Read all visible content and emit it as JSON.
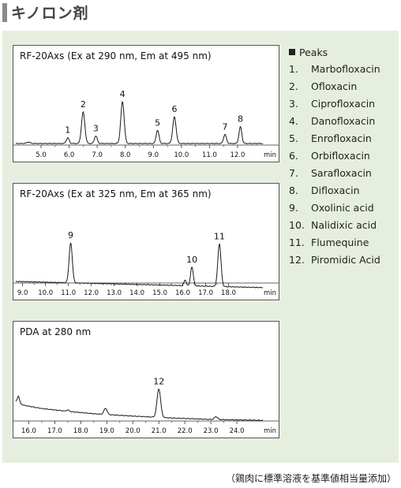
{
  "page": {
    "title": "キノロン剤",
    "footnote": "（鶏肉に標準溶液を基準値相当量添加）"
  },
  "legend": {
    "header": "Peaks",
    "items": [
      {
        "number": "1.",
        "name": "Marbofloxacin"
      },
      {
        "number": "2.",
        "name": "Ofloxacin"
      },
      {
        "number": "3.",
        "name": "Ciprofloxacin"
      },
      {
        "number": "4.",
        "name": "Danofloxacin"
      },
      {
        "number": "5.",
        "name": "Enrofloxacin"
      },
      {
        "number": "6.",
        "name": "Orbifloxacin"
      },
      {
        "number": "7.",
        "name": "Sarafloxacin"
      },
      {
        "number": "8.",
        "name": "Difloxacin"
      },
      {
        "number": "9.",
        "name": "Oxolinic acid"
      },
      {
        "number": "10.",
        "name": "Nalidixic acid"
      },
      {
        "number": "11.",
        "name": "Flumequine"
      },
      {
        "number": "12.",
        "name": "Piromidic Acid"
      }
    ]
  },
  "chart_data": [
    {
      "type": "line",
      "title": "RF-20Axs (Ex at 290 nm, Em at 495 nm)",
      "xlabel": "min",
      "xlim": [
        4.1,
        12.9
      ],
      "xticks": [
        5.0,
        6.0,
        7.0,
        8.0,
        9.0,
        10.0,
        11.0,
        12.0
      ],
      "tick_labels": [
        "5.0",
        "6.0",
        "7.0",
        "8.0",
        "9.0",
        "10.0",
        "11.0",
        "12.0"
      ],
      "ylim": [
        0,
        100
      ],
      "baseline": [
        [
          4.1,
          0
        ],
        [
          12.9,
          0
        ]
      ],
      "peaks": [
        {
          "label": "",
          "rt": 4.55,
          "height": 3,
          "width": 0.06
        },
        {
          "label": "1",
          "rt": 5.95,
          "height": 12,
          "width": 0.05
        },
        {
          "label": "2",
          "rt": 6.5,
          "height": 66,
          "width": 0.06
        },
        {
          "label": "3",
          "rt": 6.95,
          "height": 16,
          "width": 0.05
        },
        {
          "label": "4",
          "rt": 7.9,
          "height": 88,
          "width": 0.06
        },
        {
          "label": "5",
          "rt": 9.15,
          "height": 28,
          "width": 0.05
        },
        {
          "label": "6",
          "rt": 9.75,
          "height": 56,
          "width": 0.06
        },
        {
          "label": "7",
          "rt": 11.55,
          "height": 19,
          "width": 0.05
        },
        {
          "label": "8",
          "rt": 12.1,
          "height": 35,
          "width": 0.05
        }
      ]
    },
    {
      "type": "line",
      "title": "RF-20Axs (Ex at 325 nm, Em at 365 nm)",
      "xlabel": "min",
      "xlim": [
        8.7,
        19.5
      ],
      "xticks": [
        9.0,
        10.0,
        11.0,
        12.0,
        13.0,
        14.0,
        15.0,
        16.0,
        17.0,
        18.0
      ],
      "tick_labels": [
        "9.0",
        "10.0",
        "11.0",
        "12.0",
        "13.0",
        "14.0",
        "15.0",
        "16.0",
        "17.0",
        "18.0"
      ],
      "ylim": [
        0,
        100
      ],
      "baseline": [
        [
          8.7,
          0
        ],
        [
          19.5,
          -13
        ]
      ],
      "peaks": [
        {
          "label": "9",
          "rt": 11.1,
          "height": 84,
          "width": 0.07
        },
        {
          "label": "",
          "rt": 16.1,
          "height": 12,
          "width": 0.05
        },
        {
          "label": "10",
          "rt": 16.4,
          "height": 40,
          "width": 0.06
        },
        {
          "label": "11",
          "rt": 17.6,
          "height": 90,
          "width": 0.07
        }
      ]
    },
    {
      "type": "line",
      "title": "PDA at 280 nm",
      "xlabel": "min",
      "xlim": [
        15.5,
        25.0
      ],
      "xticks": [
        16.0,
        17.0,
        18.0,
        19.0,
        20.0,
        21.0,
        22.0,
        23.0,
        24.0
      ],
      "tick_labels": [
        "16.0",
        "17.0",
        "18.0",
        "19.0",
        "20.0",
        "21.0",
        "22.0",
        "23.0",
        "24.0"
      ],
      "ylim": [
        0,
        100
      ],
      "baseline": [
        [
          15.5,
          38
        ],
        [
          15.8,
          30
        ],
        [
          16.5,
          23
        ],
        [
          17.5,
          17
        ],
        [
          18.5,
          12
        ],
        [
          20.0,
          7
        ],
        [
          21.5,
          3
        ],
        [
          23.0,
          0
        ],
        [
          25.0,
          -2
        ]
      ],
      "peaks": [
        {
          "label": "",
          "rt": 15.6,
          "height": 14,
          "width": 0.04
        },
        {
          "label": "",
          "rt": 17.5,
          "height": 3,
          "width": 0.05
        },
        {
          "label": "",
          "rt": 18.95,
          "height": 13,
          "width": 0.06
        },
        {
          "label": "12",
          "rt": 21.0,
          "height": 60,
          "width": 0.07
        },
        {
          "label": "",
          "rt": 23.2,
          "height": 6,
          "width": 0.06
        }
      ]
    }
  ]
}
